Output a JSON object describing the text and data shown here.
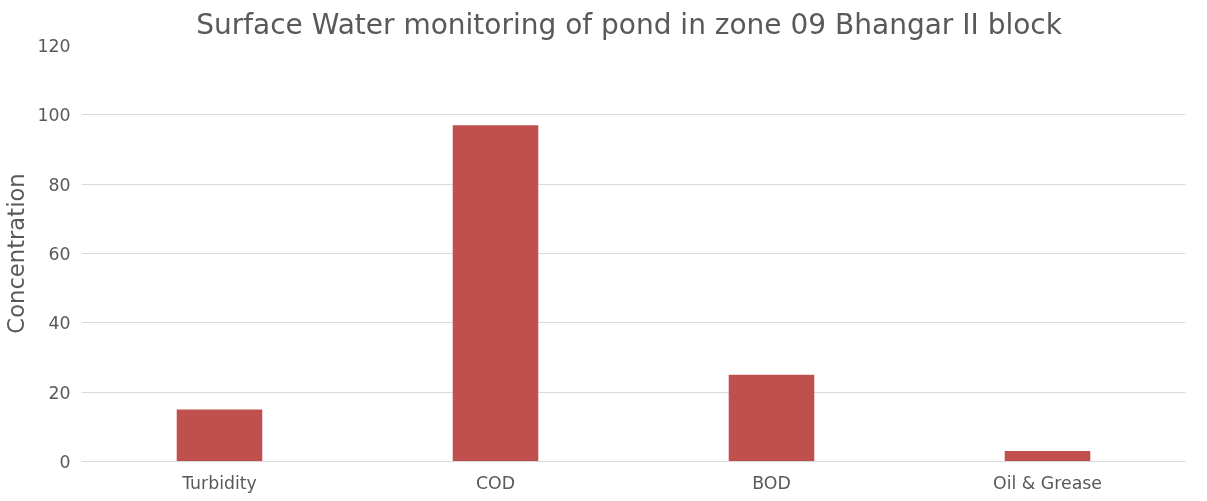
{
  "chart_data": {
    "type": "bar",
    "title": "Surface Water monitoring of pond in zone 09  Bhangar II block",
    "ylabel": "Concentration",
    "categories": [
      "Turbidity",
      "COD",
      "BOD",
      "Oil & Grease"
    ],
    "values": [
      15,
      97,
      25,
      3
    ],
    "color": "#c0504d",
    "ylim": [
      0,
      120
    ],
    "yticks": [
      0,
      20,
      40,
      60,
      80,
      100,
      120
    ],
    "grid": "y"
  }
}
